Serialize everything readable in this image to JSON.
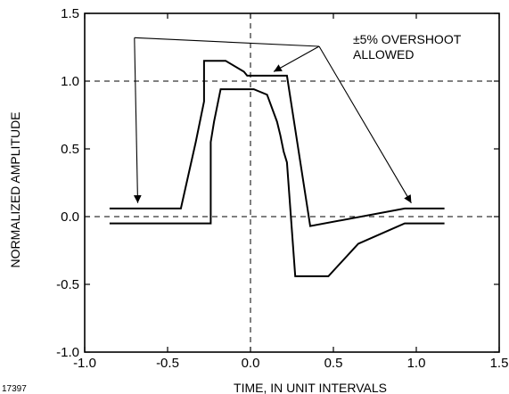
{
  "chart_data": {
    "type": "line",
    "title": "",
    "xlabel": "TIME, IN UNIT INTERVALS",
    "ylabel": "NORMALIZED AMPLITUDE",
    "xlim": [
      -1.0,
      1.5
    ],
    "ylim": [
      -1.0,
      1.5
    ],
    "xticks": [
      -1.0,
      -0.5,
      0.0,
      0.5,
      1.0,
      1.5
    ],
    "xtick_labels": [
      "-1.0",
      "-0.5",
      "0.0",
      "0.5",
      "1.0",
      "1.5"
    ],
    "yticks": [
      -1.0,
      -0.5,
      0.0,
      0.5,
      1.0,
      1.5
    ],
    "ytick_labels": [
      "-1.0",
      "-0.5",
      "0.0",
      "0.5",
      "1.0",
      "1.5"
    ],
    "grid": false,
    "reference_lines": {
      "horizontal": [
        1.0,
        0.0
      ],
      "vertical": [
        0.0
      ],
      "style": "dashed"
    },
    "series": [
      {
        "points": [
          [
            -0.85,
            0.06
          ],
          [
            -0.42,
            0.06
          ],
          [
            -0.33,
            0.55
          ],
          [
            -0.28,
            0.85
          ],
          [
            -0.28,
            1.15
          ],
          [
            -0.15,
            1.15
          ],
          [
            -0.04,
            1.07
          ],
          [
            -0.02,
            1.04
          ],
          [
            0.22,
            1.04
          ],
          [
            0.36,
            -0.07
          ],
          [
            0.93,
            0.06
          ],
          [
            1.17,
            0.06
          ]
        ]
      },
      {
        "points": [
          [
            -0.85,
            -0.05
          ],
          [
            -0.24,
            -0.05
          ],
          [
            -0.24,
            0.55
          ],
          [
            -0.22,
            0.7
          ],
          [
            -0.18,
            0.94
          ],
          [
            -0.05,
            0.94
          ],
          [
            0.02,
            0.94
          ],
          [
            0.1,
            0.9
          ],
          [
            0.16,
            0.7
          ],
          [
            0.18,
            0.6
          ],
          [
            0.2,
            0.48
          ],
          [
            0.22,
            0.4
          ],
          [
            0.27,
            -0.44
          ],
          [
            0.47,
            -0.44
          ],
          [
            0.65,
            -0.2
          ],
          [
            0.93,
            -0.05
          ],
          [
            1.17,
            -0.05
          ]
        ]
      }
    ],
    "annotations": [
      {
        "text_lines": [
          "±5% OVERSHOOT",
          "ALLOWED"
        ],
        "arrow_targets": [
          [
            -0.68,
            0.1
          ],
          [
            0.14,
            1.07
          ],
          [
            0.97,
            0.1
          ]
        ],
        "bracket_from": [
          -0.7,
          1.32
        ]
      }
    ],
    "figure_id": "17397"
  }
}
